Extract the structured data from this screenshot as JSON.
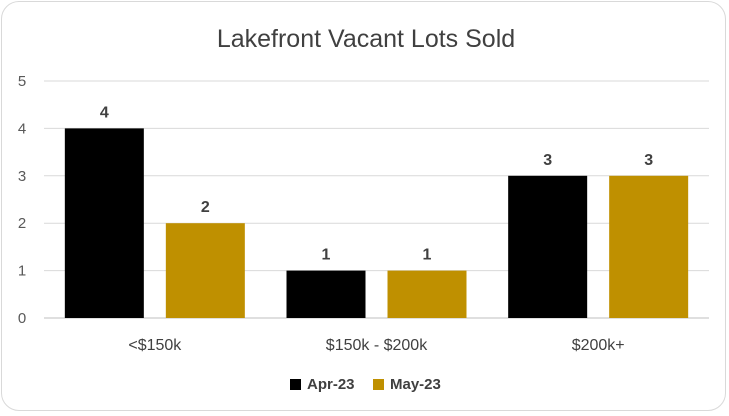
{
  "chart_data": {
    "type": "bar",
    "title": "Lakefront Vacant Lots Sold",
    "xlabel": "",
    "ylabel": "",
    "categories": [
      "<$150k",
      "$150k - $200k",
      "$200k+"
    ],
    "series": [
      {
        "name": "Apr-23",
        "values": [
          4,
          1,
          3
        ],
        "color": "#000000"
      },
      {
        "name": "May-23",
        "values": [
          2,
          1,
          3
        ],
        "color": "#bf9000"
      }
    ],
    "ylim": [
      0,
      5
    ],
    "yticks": [
      0,
      1,
      2,
      3,
      4,
      5
    ],
    "grid": true,
    "legend_position": "bottom",
    "data_labels": true
  }
}
